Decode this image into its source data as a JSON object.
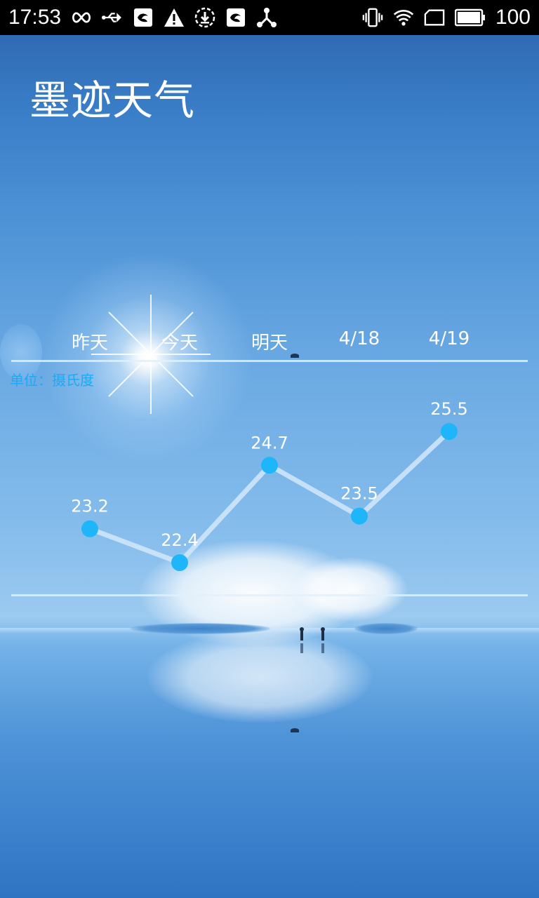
{
  "status_bar": {
    "time": "17:53",
    "battery_level": "100",
    "left_icons": [
      "infinity-icon",
      "usb-icon",
      "notification-app-icon",
      "warning-icon",
      "download-icon",
      "notification-app-icon",
      "share-icon"
    ],
    "right_icons": [
      "vibrate-icon",
      "wifi-icon",
      "sim-icon",
      "battery-icon"
    ]
  },
  "app": {
    "title": "墨迹天气"
  },
  "chart_data": {
    "type": "line",
    "categories": [
      "昨天",
      "今天",
      "明天",
      "4/18",
      "4/19"
    ],
    "series": [
      {
        "values": [
          23.2,
          22.4,
          24.7,
          23.5,
          25.5
        ]
      }
    ],
    "value_labels": [
      "23.2",
      "22.4",
      "24.7",
      "23.5",
      "25.5"
    ],
    "unit": "单位：摄氏度",
    "colors": {
      "point": "#1fb6f9",
      "line": "#d2e8fa",
      "unit_text": "#1ea9f1"
    }
  }
}
